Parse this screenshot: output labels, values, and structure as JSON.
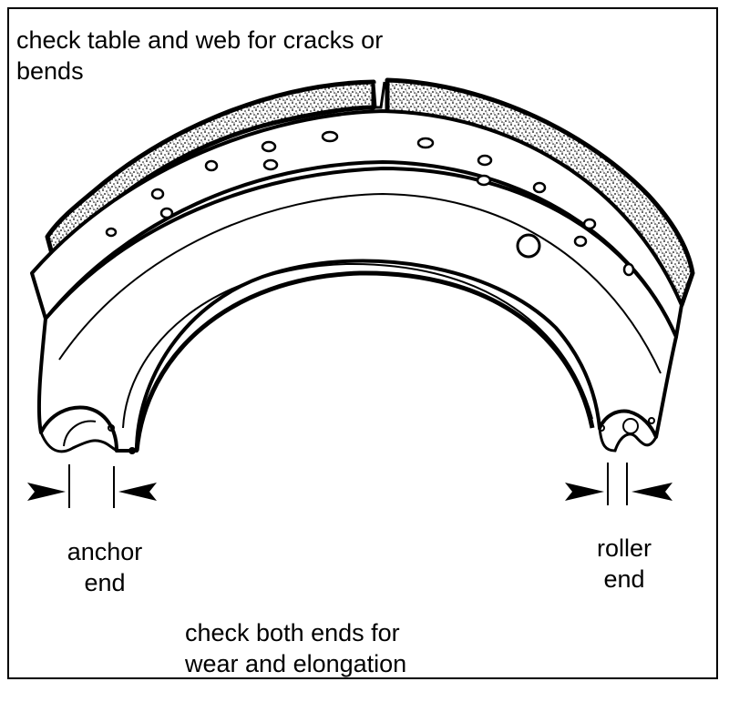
{
  "figure": {
    "subject": "brake shoe",
    "stroke_color": "#000000",
    "background_color": "#ffffff",
    "lining_color": "#7a7a7a"
  },
  "labels": {
    "top_note": [
      "check table and web for cracks or",
      "bends"
    ],
    "anchor_end": [
      "anchor",
      "end"
    ],
    "roller_end": [
      "roller",
      "end"
    ],
    "bottom_note": [
      "check both ends for",
      "wear and elongation"
    ]
  }
}
